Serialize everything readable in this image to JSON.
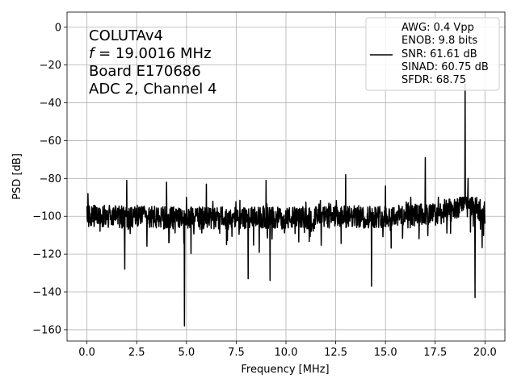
{
  "chart_data": {
    "type": "line",
    "xlabel": "Frequency [MHz]",
    "ylabel": "PSD [dB]",
    "xlim": [
      -1.0,
      21.0
    ],
    "ylim": [
      -166,
      8
    ],
    "xticks": [
      0,
      2.5,
      5,
      7.5,
      10,
      12.5,
      15,
      17.5,
      20
    ],
    "xtick_labels": [
      "0.0",
      "2.5",
      "5.0",
      "7.5",
      "10.0",
      "12.5",
      "15.0",
      "17.5",
      "20.0"
    ],
    "yticks": [
      0,
      -20,
      -40,
      -60,
      -80,
      -100,
      -120,
      -140,
      -160
    ],
    "ytick_labels": [
      "0",
      "−20",
      "−40",
      "−60",
      "−80",
      "−100",
      "−120",
      "−140",
      "−160"
    ],
    "grid": true,
    "legend_position": "top-right",
    "annotation": {
      "line1": "COLUTAv4",
      "line2_var": "f",
      "line2_rest": " = 19.0016 MHz",
      "line3": "Board E170686",
      "line4": "ADC 2, Channel 4"
    },
    "legend": {
      "lines": [
        "AWG: 0.4 Vpp",
        "ENOB: 9.8 bits",
        "SNR: 61.61 dB",
        "SINAD: 60.75 dB",
        "SFDR: 68.75"
      ],
      "series_color": "#000000"
    },
    "series": [
      {
        "color": "#000000",
        "noise_floor_db": -100,
        "noise_range_db": [
          -125,
          -90
        ],
        "baseline": [
          [
            0,
            -100
          ],
          [
            5,
            -101
          ],
          [
            10,
            -101
          ],
          [
            15,
            -100
          ],
          [
            17.5,
            -99
          ],
          [
            18.5,
            -96
          ],
          [
            19,
            -92
          ],
          [
            20,
            -98
          ]
        ],
        "peaks": [
          {
            "x": 0.05,
            "y": -88
          },
          {
            "x": 2.0,
            "y": -81
          },
          {
            "x": 4.0,
            "y": -82
          },
          {
            "x": 5.0,
            "y": -90
          },
          {
            "x": 6.0,
            "y": -83
          },
          {
            "x": 9.0,
            "y": -81
          },
          {
            "x": 13.0,
            "y": -78
          },
          {
            "x": 15.0,
            "y": -84
          },
          {
            "x": 17.0,
            "y": -69
          },
          {
            "x": 19.0016,
            "y": -30
          },
          {
            "x": 19.15,
            "y": -80
          }
        ],
        "dips": [
          {
            "x": 1.9,
            "y": -128
          },
          {
            "x": 4.9,
            "y": -158
          },
          {
            "x": 8.1,
            "y": -133
          },
          {
            "x": 9.2,
            "y": -134
          },
          {
            "x": 14.3,
            "y": -137
          },
          {
            "x": 19.5,
            "y": -143
          }
        ]
      }
    ]
  }
}
